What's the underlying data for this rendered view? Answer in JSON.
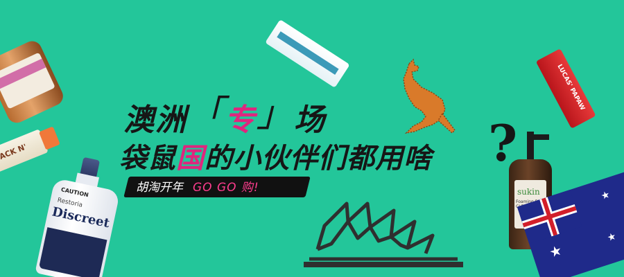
{
  "banner": {
    "headline_line1": {
      "prefix": "澳洲",
      "open_bracket": "「",
      "highlight": "专",
      "close_bracket": "」",
      "suffix": "场"
    },
    "headline_line2": {
      "part1": "袋鼠",
      "highlight": "国",
      "part2": "的小伙伴们都用啥"
    },
    "question_mark": "?",
    "tagline": {
      "text": "胡淘开年",
      "accent": "GO GO 购!"
    }
  },
  "products": {
    "discreet": {
      "top_label": "CAUTION",
      "brand": "Restoria",
      "name": "Discreet"
    },
    "jack": {
      "label": "JACK N'"
    },
    "lucas": {
      "label": "LUCAS' PAPAW"
    },
    "sukin": {
      "brand": "sukin",
      "sub": "Foaming Facial CLEANSER"
    }
  },
  "colors": {
    "background": "#23c69a",
    "headline": "#161616",
    "accent_pink": "#e0257e",
    "tag_pink": "#ff3d8e",
    "kangaroo_orange": "#d97a2a"
  },
  "icons": {
    "kangaroo": "kangaroo-icon",
    "opera_house": "opera-house-icon",
    "flag": "australian-flag-icon"
  }
}
